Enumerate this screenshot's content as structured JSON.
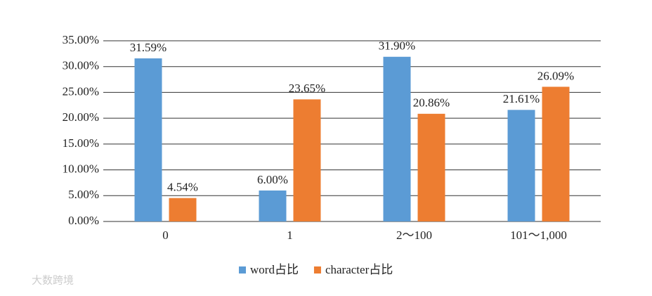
{
  "chart_data": {
    "type": "bar",
    "categories": [
      "0",
      "1",
      "2～100",
      "101～1,000"
    ],
    "series": [
      {
        "name": "word占比",
        "color": "#5b9bd5",
        "values": [
          31.59,
          6.0,
          31.9,
          21.61
        ],
        "value_labels": [
          "31.59%",
          "6.00%",
          "31.90%",
          "21.61%"
        ]
      },
      {
        "name": "character占比",
        "color": "#ed7d31",
        "values": [
          4.54,
          23.65,
          20.86,
          26.09
        ],
        "value_labels": [
          "4.54%",
          "23.65%",
          "20.86%",
          "26.09%"
        ]
      }
    ],
    "ylim": [
      0,
      35
    ],
    "yticks": [
      {
        "value": 0,
        "label": "0.00%"
      },
      {
        "value": 5,
        "label": "5.00%"
      },
      {
        "value": 10,
        "label": "10.00%"
      },
      {
        "value": 15,
        "label": "15.00%"
      },
      {
        "value": 20,
        "label": "20.00%"
      },
      {
        "value": 25,
        "label": "25.00%"
      },
      {
        "value": 30,
        "label": "30.00%"
      },
      {
        "value": 35,
        "label": "35.00%"
      }
    ],
    "grid": true,
    "legend": "bottom",
    "watermark": "大数跨境"
  }
}
